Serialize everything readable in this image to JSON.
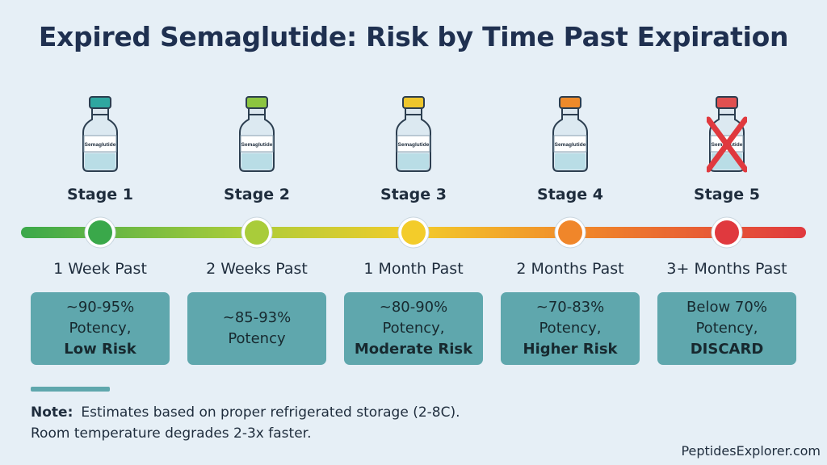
{
  "title": "Expired Semaglutide: Risk by Time Past Expiration",
  "vial_label": "Semaglutide",
  "stages": [
    {
      "name": "Stage 1",
      "time": "1 Week Past",
      "line1": "~90-95%",
      "line2": "Potency,",
      "risk": "Low Risk",
      "color": "#3aa84a",
      "cap": "#2fa7a0"
    },
    {
      "name": "Stage 2",
      "time": "2 Weeks Past",
      "line1": "~85-93%",
      "line2": "Potency",
      "risk": "",
      "color": "#a9cc3a",
      "cap": "#8cc540"
    },
    {
      "name": "Stage 3",
      "time": "1 Month Past",
      "line1": "~80-90%",
      "line2": "Potency,",
      "risk": "Moderate Risk",
      "color": "#f3cc2a",
      "cap": "#eec62c"
    },
    {
      "name": "Stage 4",
      "time": "2 Months Past",
      "line1": "~70-83%",
      "line2": "Potency,",
      "risk": "Higher Risk",
      "color": "#f0862a",
      "cap": "#ee8a2a"
    },
    {
      "name": "Stage 5",
      "time": "3+ Months Past",
      "line1": "Below 70%",
      "line2": "Potency,",
      "risk": "DISCARD",
      "color": "#e0393e",
      "cap": "#e05050"
    }
  ],
  "note": {
    "label": "Note:",
    "line1": "Estimates based on proper refrigerated storage (2-8C).",
    "line2": "Room temperature degrades 2-3x faster."
  },
  "brand": "PeptidesExplorer.com"
}
